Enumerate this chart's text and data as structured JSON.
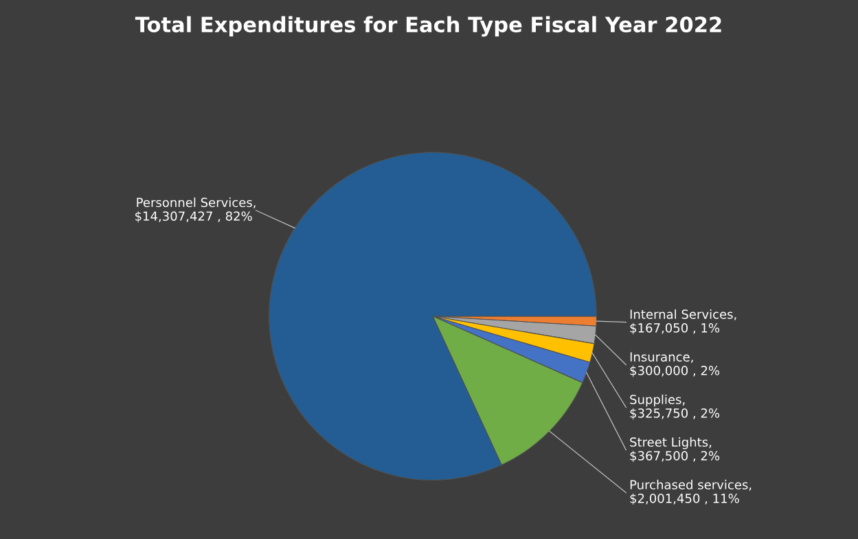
{
  "chart_data": {
    "type": "pie",
    "title": "Total Expenditures for Each Type Fiscal Year 2022",
    "categories": [
      "Internal Services",
      "Insurance",
      "Supplies",
      "Street Lights",
      "Purchased services",
      "Personnel Services"
    ],
    "values": [
      167050,
      300000,
      325750,
      367500,
      2001450,
      14307427
    ],
    "colors": [
      "#ed7d31",
      "#a5a5a5",
      "#ffc000",
      "#4472c4",
      "#70ad47",
      "#235d93"
    ],
    "value_labels": [
      ", $167,050 , 1%",
      ", $300,000 , 2%",
      ", $325,750 , 2%",
      ", $367,500 , 2%",
      ", $2,001,450 , 11%",
      ", $14,307,427 , 82%"
    ],
    "legend": false
  }
}
